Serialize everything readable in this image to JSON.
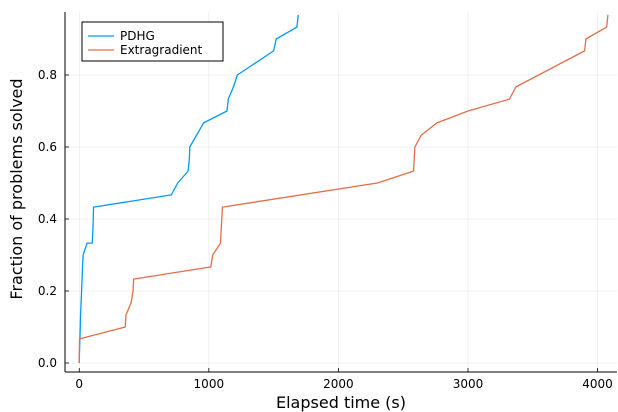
{
  "chart_data": {
    "type": "line",
    "xlabel": "Elapsed time (s)",
    "ylabel": "Fraction of problems solved",
    "xlim": [
      -110,
      4150
    ],
    "ylim": [
      -0.025,
      0.975
    ],
    "x_ticks": [
      0,
      1000,
      2000,
      3000,
      4000
    ],
    "y_ticks": [
      0.0,
      0.2,
      0.4,
      0.6,
      0.8
    ],
    "x_tick_labels": [
      "0",
      "1000",
      "2000",
      "3000",
      "4000"
    ],
    "y_tick_labels": [
      "0.0",
      "0.2",
      "0.4",
      "0.6",
      "0.8"
    ],
    "grid": true,
    "legend_position": "top-left",
    "series": [
      {
        "name": "PDHG",
        "color": "#009AFA",
        "points": [
          [
            0,
            0.0
          ],
          [
            2,
            0.033
          ],
          [
            5,
            0.067
          ],
          [
            8,
            0.1
          ],
          [
            10,
            0.133
          ],
          [
            14,
            0.167
          ],
          [
            18,
            0.2
          ],
          [
            22,
            0.233
          ],
          [
            25,
            0.267
          ],
          [
            30,
            0.3
          ],
          [
            60,
            0.333
          ],
          [
            100,
            0.333
          ],
          [
            105,
            0.367
          ],
          [
            108,
            0.4
          ],
          [
            110,
            0.433
          ],
          [
            710,
            0.467
          ],
          [
            760,
            0.5
          ],
          [
            840,
            0.533
          ],
          [
            850,
            0.567
          ],
          [
            853,
            0.6
          ],
          [
            960,
            0.667
          ],
          [
            1140,
            0.7
          ],
          [
            1150,
            0.733
          ],
          [
            1190,
            0.767
          ],
          [
            1220,
            0.8
          ],
          [
            1500,
            0.867
          ],
          [
            1520,
            0.9
          ],
          [
            1680,
            0.933
          ],
          [
            1690,
            0.967
          ]
        ]
      },
      {
        "name": "Extragradient",
        "color": "#E26F46",
        "points": [
          [
            0,
            0.0
          ],
          [
            2,
            0.067
          ],
          [
            355,
            0.1
          ],
          [
            360,
            0.133
          ],
          [
            400,
            0.167
          ],
          [
            415,
            0.2
          ],
          [
            420,
            0.233
          ],
          [
            1015,
            0.267
          ],
          [
            1030,
            0.3
          ],
          [
            1090,
            0.333
          ],
          [
            1095,
            0.367
          ],
          [
            1100,
            0.4
          ],
          [
            1105,
            0.433
          ],
          [
            2300,
            0.5
          ],
          [
            2580,
            0.533
          ],
          [
            2585,
            0.567
          ],
          [
            2590,
            0.6
          ],
          [
            2640,
            0.633
          ],
          [
            2760,
            0.667
          ],
          [
            3000,
            0.7
          ],
          [
            3320,
            0.733
          ],
          [
            3370,
            0.767
          ],
          [
            3900,
            0.867
          ],
          [
            3910,
            0.9
          ],
          [
            4070,
            0.933
          ],
          [
            4080,
            0.967
          ]
        ]
      }
    ]
  }
}
